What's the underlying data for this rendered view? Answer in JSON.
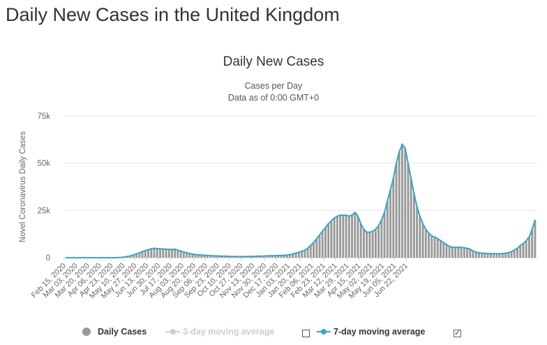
{
  "page": {
    "title": "Daily New Cases in the United Kingdom"
  },
  "chart_data": {
    "type": "bar",
    "title": "Daily New Cases",
    "subtitle": "Cases per Day",
    "subtitle2": "Data as of 0:00 GMT+0",
    "ylabel": "Novel Coronavirus Daily Cases",
    "xlabel": "",
    "ylim": [
      0,
      75000
    ],
    "yticks": [
      0,
      25000,
      50000,
      75000
    ],
    "ytick_labels": [
      "0",
      "25k",
      "50k",
      "75k"
    ],
    "grid": true,
    "legend_position": "bottom",
    "x_start": "Feb 15, 2020",
    "xtick_labels": [
      "Feb 15, 2020",
      "Mar 03, 2020",
      "Mar 20, 2020",
      "Apr 06, 2020",
      "Apr 23, 2020",
      "May 10, 2020",
      "May 27, 2020",
      "Jun 13, 2020",
      "Jun 30, 2020",
      "Jul 17, 2020",
      "Aug 03, 2020",
      "Aug 20, 2020",
      "Sep 06, 2020",
      "Sep 23, 2020",
      "Oct 10, 2020",
      "Oct 27, 2020",
      "Nov 13, 2020",
      "Nov 30, 2020",
      "Dec 17, 2020",
      "Jan 03, 2021",
      "Jan 20, 2021",
      "Feb 06, 2021",
      "Feb 23, 2021",
      "Mar 12, 2021",
      "Mar 29, 2021",
      "Apr 15, 2021",
      "May 02, 2021",
      "May 19, 2021",
      "Jun 05, 2021",
      "Jun 22, 2021"
    ],
    "series": [
      {
        "name": "Daily Cases",
        "type": "bar",
        "color": "#999999",
        "values": [
          0,
          0,
          0,
          0,
          0,
          0,
          0,
          0,
          0,
          0,
          0,
          0,
          0,
          0,
          0,
          0,
          0,
          0,
          100,
          200,
          400,
          700,
          1000,
          1500,
          2000,
          2600,
          3200,
          3800,
          4300,
          4700,
          5000,
          4800,
          4700,
          4600,
          4500,
          4400,
          4400,
          4500,
          4000,
          3500,
          3000,
          2600,
          2200,
          1900,
          1700,
          1500,
          1400,
          1300,
          1200,
          1100,
          1000,
          950,
          900,
          850,
          800,
          750,
          700,
          650,
          600,
          600,
          600,
          600,
          650,
          700,
          750,
          800,
          850,
          900,
          950,
          1000,
          1050,
          1100,
          1150,
          1200,
          1300,
          1400,
          1600,
          2000,
          2400,
          2900,
          3400,
          4000,
          5000,
          6500,
          8000,
          10000,
          12000,
          14000,
          16000,
          18000,
          19500,
          21000,
          22000,
          22500,
          22500,
          22500,
          22000,
          22500,
          24000,
          22000,
          18000,
          15000,
          13500,
          13500,
          14000,
          15000,
          17000,
          20000,
          24000,
          30000,
          36000,
          42000,
          50000,
          56000,
          60000,
          58000,
          50000,
          42000,
          34000,
          27000,
          22000,
          18000,
          15000,
          13000,
          11500,
          11000,
          10000,
          9000,
          8000,
          7000,
          6000,
          5500,
          5500,
          5500,
          5500,
          5300,
          5000,
          4500,
          3500,
          3000,
          2600,
          2400,
          2300,
          2200,
          2100,
          2100,
          2100,
          2100,
          2200,
          2400,
          2700,
          3200,
          4000,
          5000,
          6500,
          7500,
          9000,
          11000,
          15000,
          20000
        ]
      },
      {
        "name": "3-day moving average",
        "type": "line",
        "color": "#cccccc",
        "visible": false
      },
      {
        "name": "7-day moving average",
        "type": "line",
        "color": "#3ba3c7",
        "visible": true,
        "values": [
          0,
          0,
          0,
          0,
          0,
          0,
          0,
          0,
          0,
          0,
          0,
          0,
          0,
          0,
          0,
          0,
          0,
          0,
          100,
          200,
          400,
          700,
          1000,
          1500,
          2000,
          2600,
          3200,
          3800,
          4300,
          4700,
          5000,
          4800,
          4700,
          4600,
          4500,
          4400,
          4400,
          4500,
          4000,
          3500,
          3000,
          2600,
          2200,
          1900,
          1700,
          1500,
          1400,
          1300,
          1200,
          1100,
          1000,
          950,
          900,
          850,
          800,
          750,
          700,
          650,
          600,
          600,
          600,
          600,
          650,
          700,
          750,
          800,
          850,
          900,
          950,
          1000,
          1050,
          1100,
          1150,
          1200,
          1300,
          1400,
          1600,
          2000,
          2400,
          2900,
          3400,
          4000,
          5000,
          6500,
          8000,
          10000,
          12000,
          14000,
          16000,
          18000,
          19500,
          21000,
          22000,
          22500,
          22500,
          22500,
          22000,
          22500,
          24000,
          22000,
          18000,
          15000,
          13500,
          13500,
          14000,
          15000,
          17000,
          20000,
          24000,
          30000,
          36000,
          42000,
          50000,
          56000,
          60000,
          58000,
          50000,
          42000,
          34000,
          27000,
          22000,
          18000,
          15000,
          13000,
          11500,
          11000,
          10000,
          9000,
          8000,
          7000,
          6000,
          5500,
          5500,
          5500,
          5500,
          5300,
          5000,
          4500,
          3500,
          3000,
          2600,
          2400,
          2300,
          2200,
          2100,
          2100,
          2100,
          2100,
          2200,
          2400,
          2700,
          3200,
          4000,
          5000,
          6500,
          7500,
          9000,
          11000,
          15000,
          20000
        ]
      }
    ]
  },
  "legend": {
    "daily_cases": "Daily Cases",
    "ma3": "3-day moving average",
    "ma7": "7-day moving average",
    "ma3_checked": false,
    "ma7_checked": true
  }
}
